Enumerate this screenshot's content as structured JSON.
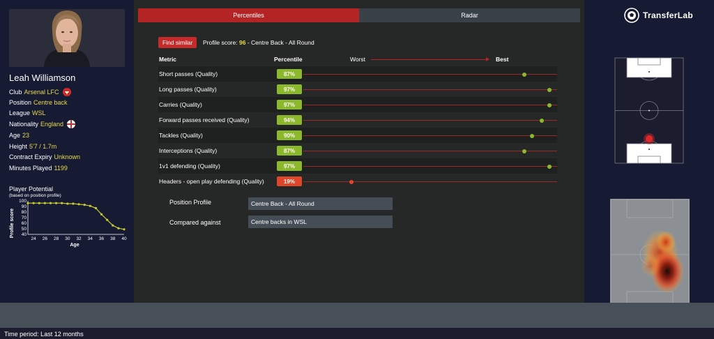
{
  "player": {
    "name": "Leah Williamson",
    "club_label": "Club",
    "club": "Arsenal LFC",
    "position_label": "Position",
    "position": "Centre back",
    "league_label": "League",
    "league": "WSL",
    "nationality_label": "Nationality",
    "nationality": "England",
    "age_label": "Age",
    "age": "23",
    "height_label": "Height",
    "height": "5'7 / 1.7m",
    "contract_label": "Contract Expiry",
    "contract": "Unknown",
    "minutes_label": "Minutes Played",
    "minutes": "1199"
  },
  "potential": {
    "title": "Player Potential",
    "subtitle": "(based on position profile)"
  },
  "chart_data": {
    "type": "line",
    "title": "Player Potential",
    "xlabel": "Age",
    "ylabel": "Profile score",
    "x": [
      23,
      24,
      25,
      26,
      27,
      28,
      29,
      30,
      31,
      32,
      33,
      34,
      35,
      36,
      37,
      38,
      39,
      40
    ],
    "values": [
      96,
      96,
      96,
      96,
      96,
      96,
      96,
      95,
      95,
      94,
      93,
      91,
      87,
      76,
      66,
      56,
      51,
      49
    ],
    "xticks": [
      "24",
      "26",
      "28",
      "30",
      "32",
      "34",
      "36",
      "38",
      "40"
    ],
    "yticks": [
      "40",
      "50",
      "60",
      "70",
      "80",
      "90",
      "100"
    ],
    "xlim": [
      23,
      40
    ],
    "ylim": [
      40,
      100
    ],
    "grid": false
  },
  "tabs": [
    {
      "label": "Percentiles",
      "active": true
    },
    {
      "label": "Radar",
      "active": false
    }
  ],
  "find_similar_label": "Find similar",
  "profile_score": {
    "label": "Profile score:",
    "score": "96",
    "suffix": "- Centre Back - All Round"
  },
  "metrics_header": {
    "metric": "Metric",
    "percentile": "Percentile",
    "worst": "Worst",
    "best": "Best"
  },
  "metrics": [
    {
      "name": "Short passes (Quality)",
      "percentile_label": "87%",
      "percentile": 87,
      "color": "#8cb82b"
    },
    {
      "name": "Long passes (Quality)",
      "percentile_label": "97%",
      "percentile": 97,
      "color": "#8cb82b"
    },
    {
      "name": "Carries (Quality)",
      "percentile_label": "97%",
      "percentile": 97,
      "color": "#8cb82b"
    },
    {
      "name": "Forward passes received (Quality)",
      "percentile_label": "94%",
      "percentile": 94,
      "color": "#8cb82b"
    },
    {
      "name": "Tackles (Quality)",
      "percentile_label": "90%",
      "percentile": 90,
      "color": "#8cb82b"
    },
    {
      "name": "Interceptions (Quality)",
      "percentile_label": "87%",
      "percentile": 87,
      "color": "#8cb82b"
    },
    {
      "name": "1v1 defending (Quality)",
      "percentile_label": "97%",
      "percentile": 97,
      "color": "#8cb82b"
    },
    {
      "name": "Headers - open play defending (Quality)",
      "percentile_label": "19%",
      "percentile": 19,
      "color": "#e0462c"
    }
  ],
  "position_profile": {
    "label": "Position Profile",
    "value": "Centre Back - All Round"
  },
  "compared_against": {
    "label": "Compared against",
    "value": "Centre backs in WSL"
  },
  "brand": {
    "name": "TransferLab"
  },
  "time_period": "Time period: Last 12 months"
}
